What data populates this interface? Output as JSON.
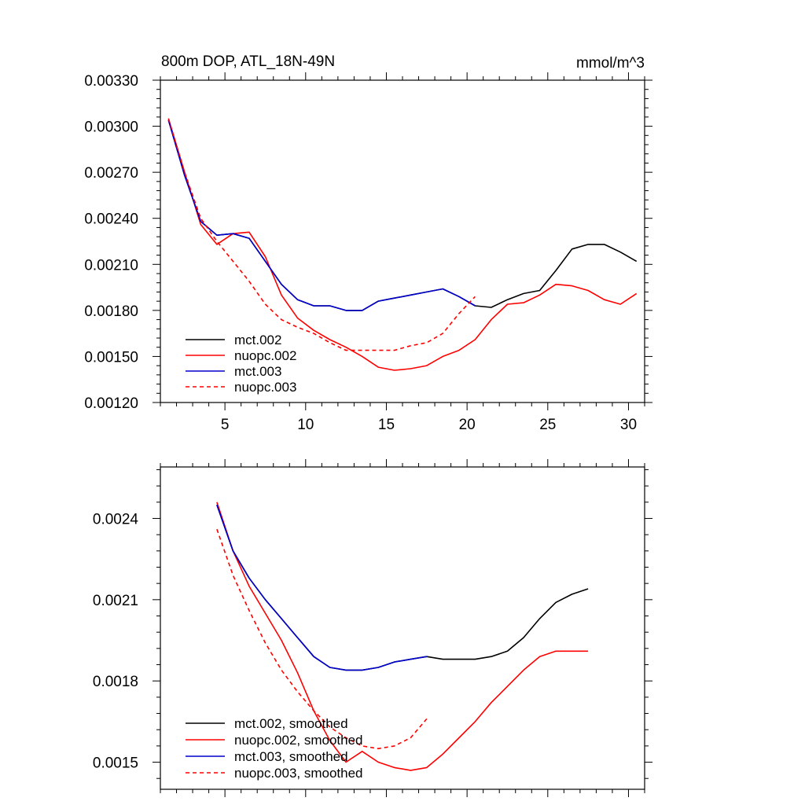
{
  "chart_data": [
    {
      "type": "line",
      "title": "800m DOP, ATL_18N-49N",
      "units": "mmol/m^3",
      "xlim": [
        1,
        31
      ],
      "ylim": [
        0.0012,
        0.0033
      ],
      "x_ticks": [
        5,
        10,
        15,
        20,
        25,
        30
      ],
      "x_tick_labels": [
        "5",
        "10",
        "15",
        "20",
        "25",
        "30"
      ],
      "y_ticks": [
        0.0012,
        0.0015,
        0.0018,
        0.0021,
        0.0024,
        0.0027,
        0.003,
        0.0033
      ],
      "y_tick_labels": [
        "0.00120",
        "0.00150",
        "0.00180",
        "0.00210",
        "0.00240",
        "0.00270",
        "0.00300",
        "0.00330"
      ],
      "legend_position": "bottom-left",
      "series": [
        {
          "name": "mct.002",
          "color": "#000000",
          "dash": "solid",
          "x": [
            1.5,
            2.5,
            3.5,
            4.5,
            5.5,
            6.5,
            7.5,
            8.5,
            9.5,
            10.5,
            11.5,
            12.5,
            13.5,
            14.5,
            15.5,
            16.5,
            17.5,
            18.5,
            19.5,
            20.5,
            21.5,
            22.5,
            23.5,
            24.5,
            25.5,
            26.5,
            27.5,
            28.5,
            29.5,
            30.5
          ],
          "values": [
            0.00304,
            0.00268,
            0.00238,
            0.00229,
            0.0023,
            0.00227,
            0.00212,
            0.00197,
            0.00187,
            0.00183,
            0.00183,
            0.0018,
            0.0018,
            0.00186,
            0.00188,
            0.0019,
            0.00192,
            0.00194,
            0.00189,
            0.00183,
            0.00182,
            0.00187,
            0.00191,
            0.00193,
            0.00206,
            0.0022,
            0.00223,
            0.00223,
            0.00218,
            0.00212
          ]
        },
        {
          "name": "nuopc.002",
          "color": "#ff0000",
          "dash": "solid",
          "x": [
            1.5,
            2.5,
            3.5,
            4.5,
            5.5,
            6.5,
            7.5,
            8.5,
            9.5,
            10.5,
            11.5,
            12.5,
            13.5,
            14.5,
            15.5,
            16.5,
            17.5,
            18.5,
            19.5,
            20.5,
            21.5,
            22.5,
            23.5,
            24.5,
            25.5,
            26.5,
            27.5,
            28.5,
            29.5,
            30.5
          ],
          "values": [
            0.00305,
            0.0027,
            0.00236,
            0.00223,
            0.0023,
            0.00231,
            0.00215,
            0.0019,
            0.00175,
            0.00167,
            0.00161,
            0.00156,
            0.0015,
            0.00143,
            0.00141,
            0.00142,
            0.00144,
            0.0015,
            0.00154,
            0.00161,
            0.00174,
            0.00184,
            0.00185,
            0.0019,
            0.00197,
            0.00196,
            0.00193,
            0.00187,
            0.00184,
            0.00191
          ]
        },
        {
          "name": "mct.003",
          "color": "#0000cc",
          "dash": "solid",
          "x": [
            1.5,
            2.5,
            3.5,
            4.5,
            5.5,
            6.5,
            7.5,
            8.5,
            9.5,
            10.5,
            11.5,
            12.5,
            13.5,
            14.5,
            15.5,
            16.5,
            17.5,
            18.5,
            19.5,
            20.5
          ],
          "values": [
            0.00304,
            0.00268,
            0.00238,
            0.00229,
            0.0023,
            0.00227,
            0.00212,
            0.00197,
            0.00187,
            0.00183,
            0.00183,
            0.0018,
            0.0018,
            0.00186,
            0.00188,
            0.0019,
            0.00192,
            0.00194,
            0.00189,
            0.00183
          ]
        },
        {
          "name": "nuopc.003",
          "color": "#ff0000",
          "dash": "dashed",
          "x": [
            1.5,
            2.5,
            3.5,
            4.5,
            5.5,
            6.5,
            7.5,
            8.5,
            9.5,
            10.5,
            11.5,
            12.5,
            13.5,
            14.5,
            15.5,
            16.5,
            17.5,
            18.5,
            19.5,
            20.5
          ],
          "values": [
            0.00305,
            0.0027,
            0.0024,
            0.00225,
            0.00212,
            0.00199,
            0.00184,
            0.00174,
            0.00169,
            0.00165,
            0.00159,
            0.00154,
            0.00154,
            0.00154,
            0.00154,
            0.00157,
            0.00159,
            0.00165,
            0.00178,
            0.00189
          ]
        }
      ]
    },
    {
      "type": "line",
      "title": "",
      "units": "",
      "xlim": [
        1,
        31
      ],
      "ylim": [
        0.0014,
        0.00259
      ],
      "x_ticks": [
        5,
        10,
        15,
        20,
        25,
        30
      ],
      "x_tick_labels": [],
      "y_ticks": [
        0.0015,
        0.0018,
        0.0021,
        0.0024
      ],
      "y_tick_labels": [
        "0.0015",
        "0.0018",
        "0.0021",
        "0.0024"
      ],
      "legend_position": "bottom-left",
      "series": [
        {
          "name": "mct.002, smoothed",
          "color": "#000000",
          "dash": "solid",
          "x": [
            4.5,
            5.5,
            6.5,
            7.5,
            8.5,
            9.5,
            10.5,
            11.5,
            12.5,
            13.5,
            14.5,
            15.5,
            16.5,
            17.5,
            18.5,
            19.5,
            20.5,
            21.5,
            22.5,
            23.5,
            24.5,
            25.5,
            26.5,
            27.5
          ],
          "values": [
            0.00245,
            0.00228,
            0.00218,
            0.0021,
            0.00203,
            0.00196,
            0.00189,
            0.00185,
            0.00184,
            0.00184,
            0.00185,
            0.00187,
            0.00188,
            0.00189,
            0.00188,
            0.00188,
            0.00188,
            0.00189,
            0.00191,
            0.00196,
            0.00203,
            0.00209,
            0.00212,
            0.00214
          ]
        },
        {
          "name": "nuopc.002, smoothed",
          "color": "#ff0000",
          "dash": "solid",
          "x": [
            4.5,
            5.5,
            6.5,
            7.5,
            8.5,
            9.5,
            10.5,
            11.5,
            12.5,
            13.5,
            14.5,
            15.5,
            16.5,
            17.5,
            18.5,
            19.5,
            20.5,
            21.5,
            22.5,
            23.5,
            24.5,
            25.5,
            26.5,
            27.5
          ],
          "values": [
            0.00246,
            0.00228,
            0.00215,
            0.00205,
            0.00195,
            0.00183,
            0.00169,
            0.00158,
            0.0015,
            0.00154,
            0.0015,
            0.00148,
            0.00147,
            0.00148,
            0.00153,
            0.00159,
            0.00165,
            0.00172,
            0.00178,
            0.00184,
            0.00189,
            0.00191,
            0.00191,
            0.00191
          ]
        },
        {
          "name": "mct.003, smoothed",
          "color": "#0000cc",
          "dash": "solid",
          "x": [
            4.5,
            5.5,
            6.5,
            7.5,
            8.5,
            9.5,
            10.5,
            11.5,
            12.5,
            13.5,
            14.5,
            15.5,
            16.5,
            17.5
          ],
          "values": [
            0.00245,
            0.00228,
            0.00218,
            0.0021,
            0.00203,
            0.00196,
            0.00189,
            0.00185,
            0.00184,
            0.00184,
            0.00185,
            0.00187,
            0.00188,
            0.00189
          ]
        },
        {
          "name": "nuopc.003, smoothed",
          "color": "#ff0000",
          "dash": "dashed",
          "x": [
            4.5,
            5.5,
            6.5,
            7.5,
            8.5,
            9.5,
            10.5,
            11.5,
            12.5,
            13.5,
            14.5,
            15.5,
            16.5,
            17.5
          ],
          "values": [
            0.00236,
            0.00219,
            0.00206,
            0.00194,
            0.00184,
            0.00176,
            0.00169,
            0.00163,
            0.00159,
            0.00156,
            0.00155,
            0.00156,
            0.00159,
            0.00166
          ]
        }
      ]
    }
  ]
}
